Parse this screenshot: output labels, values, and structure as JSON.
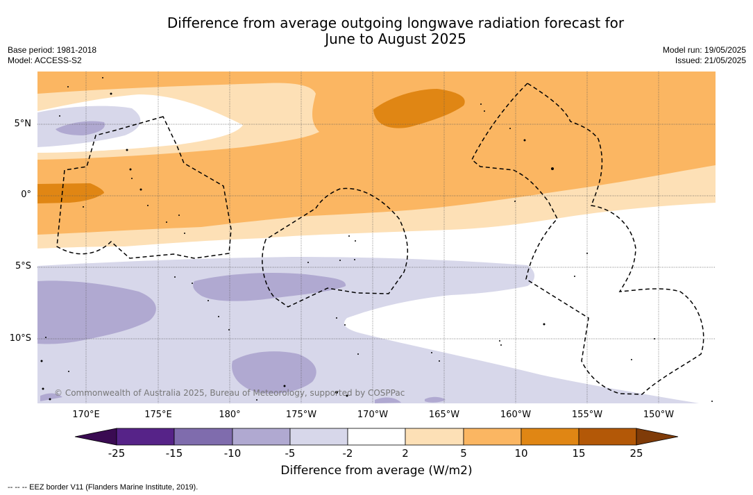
{
  "title_line1": "Difference from average outgoing longwave radiation forecast for",
  "title_line2": "June to August 2025",
  "base_period": "Base period: 1981-2018",
  "model": "Model: ACCESS-S2",
  "model_run": "Model run: 19/05/2025",
  "issued": "Issued: 21/05/2025",
  "lat_labels": [
    "5°N",
    "0°",
    "5°S",
    "10°S"
  ],
  "lon_labels": [
    "170°E",
    "175°E",
    "180°",
    "175°W",
    "170°W",
    "165°W",
    "160°W",
    "155°W",
    "150°W"
  ],
  "credit": "© Commonwealth of Australia 2025, Bureau of Meteorology, supported by COSPPac",
  "colorbar": {
    "ticks": [
      "-25",
      "-15",
      "-10",
      "-5",
      "-2",
      "2",
      "5",
      "10",
      "15",
      "25"
    ],
    "label": "Difference from average (W/m2)",
    "colors": [
      "#3a0b52",
      "#562388",
      "#7f6cad",
      "#b0a9d1",
      "#d7d7ea",
      "#ffffff",
      "#fde0b6",
      "#fbb662",
      "#e08614",
      "#b35807",
      "#7f3b08"
    ]
  },
  "footer": "-- -- -- EEZ border V11 (Flanders Marine Institute, 2019)."
}
